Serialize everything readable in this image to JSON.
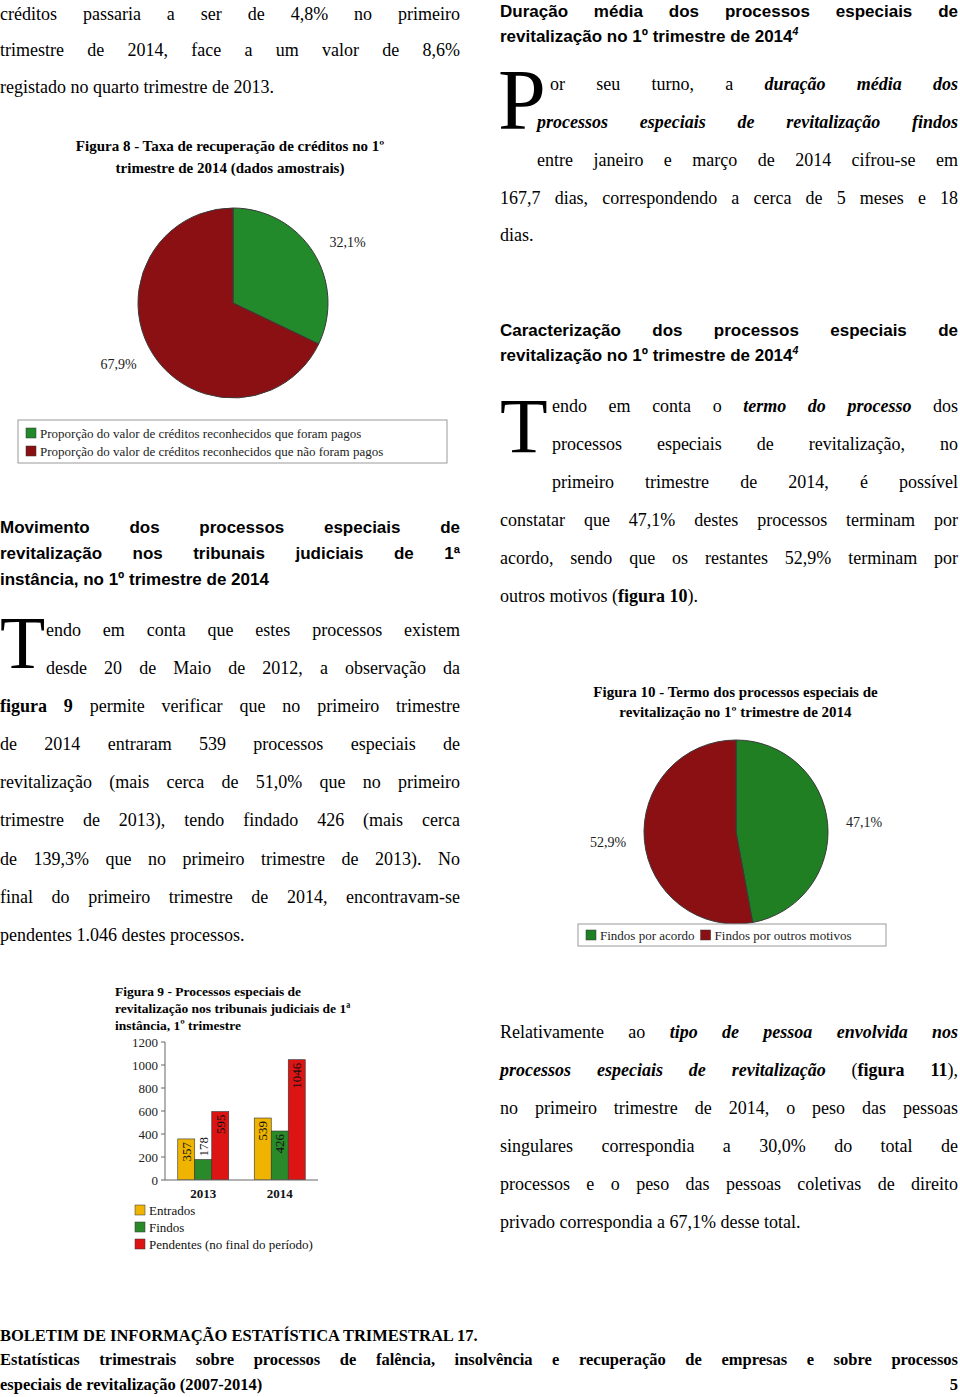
{
  "document": {
    "blocks": [
      {
        "kind": "paragraph",
        "lines": [
          [
            "créditos passaria a ser de 4,8% no primeiro"
          ],
          [
            "trimestre de 2014, face a um valor de 8,6%"
          ],
          [
            "registado no quarto trimestre de 2013."
          ]
        ]
      },
      {
        "kind": "heading",
        "lines": [
          [
            "Movimento dos processos especiais de"
          ],
          [
            "revitalização nos tribunais judiciais de 1ª"
          ],
          [
            "instância, no 1º trimestre de 2014"
          ]
        ]
      },
      {
        "kind": "paragraph",
        "drop_cap": "T",
        "lines": [
          [
            "endo em conta que estes processos existem"
          ],
          [
            "desde 20 de Maio de 2012, a observação da"
          ],
          [
            {
              "text": "figura 9",
              "style": "bold"
            },
            " permite verificar que no primeiro trimestre"
          ],
          [
            "de 2014 entraram 539 processos especiais de"
          ],
          [
            "revitalização (mais cerca de 51,0% que no primeiro"
          ],
          [
            "trimestre de 2013), tendo findado 426 (mais cerca"
          ],
          [
            "de 139,3% que no primeiro trimestre de 2013). No"
          ],
          [
            "final do primeiro trimestre de 2014, encontravam-se"
          ],
          [
            "pendentes 1.046 destes processos."
          ]
        ]
      },
      {
        "kind": "heading",
        "lines": [
          [
            "Duração média dos processos especiais de"
          ],
          [
            "revitalização no 1º trimestre de 2014",
            {
              "text": "4",
              "style": "superscript"
            }
          ]
        ]
      },
      {
        "kind": "paragraph",
        "drop_cap": "P",
        "lines": [
          [
            "or seu turno, a ",
            {
              "text": "duração média dos",
              "style": "bold-italic"
            }
          ],
          [
            {
              "text": "processos especiais de revitalização findos",
              "style": "bold-italic"
            }
          ],
          [
            "entre janeiro e março de 2014 cifrou-se em"
          ],
          [
            "167,7 dias, correspondendo a cerca de 5 meses e 18"
          ],
          [
            "dias."
          ]
        ]
      },
      {
        "kind": "heading",
        "lines": [
          [
            "Caracterização dos processos especiais de"
          ],
          [
            "revitalização no 1º trimestre de 2014",
            {
              "text": "4",
              "style": "superscript"
            }
          ]
        ]
      },
      {
        "kind": "paragraph",
        "drop_cap": "T",
        "lines": [
          [
            "endo em conta o ",
            {
              "text": "termo do processo",
              "style": "bold-italic"
            },
            " dos"
          ],
          [
            "processos especiais de revitalização, no"
          ],
          [
            "primeiro trimestre de 2014, é possível"
          ],
          [
            "constatar que 47,1% destes processos terminam por"
          ],
          [
            "acordo, sendo que os restantes 52,9% terminam por"
          ],
          [
            "outros motivos (",
            {
              "text": "figura 10",
              "style": "bold"
            },
            ")."
          ]
        ]
      },
      {
        "kind": "paragraph",
        "lines": [
          [
            "Relativamente ao ",
            {
              "text": "tipo de pessoa envolvida nos",
              "style": "bold-italic"
            }
          ],
          [
            {
              "text": "processos especiais de revitalização",
              "style": "bold-italic"
            },
            " (",
            {
              "text": "figura 11",
              "style": "bold"
            },
            "),"
          ],
          [
            "no primeiro trimestre de 2014, o peso das pessoas"
          ],
          [
            "singulares correspondia a 30,0% do total de"
          ],
          [
            "processos e o peso das pessoas coletivas de direito"
          ],
          [
            "privado correspondia a 67,1% desse total."
          ]
        ]
      },
      {
        "kind": "footer",
        "page_number": "5",
        "lines": [
          [
            "BOLETIM DE INFORMAÇÃO ESTATÍSTICA TRIMESTRAL 17."
          ],
          [
            "Estatísticas trimestrais sobre processos de falência, insolvência e recuperação de empresas e sobre processos"
          ],
          [
            "especiais de revitalização (2007-2014)"
          ]
        ]
      }
    ]
  },
  "chart_data": [
    {
      "type": "pie",
      "title": "Figura 8 - Taxa de recuperação de créditos no 1º trimestre de 2014 (dados amostrais)",
      "categories": [
        "Proporção do valor de créditos reconhecidos que foram pagos",
        "Proporção do valor de créditos reconhecidos que não foram pagos"
      ],
      "values": [
        32.1,
        67.9
      ],
      "value_labels": [
        "32,1%",
        "67,9%"
      ],
      "colors": [
        "#228a2a",
        "#8a1014"
      ],
      "data_labels": true,
      "legend": "bottom"
    },
    {
      "type": "bar",
      "title": "Figura 9 - Processos especiais de revitalização nos tribunais judiciais de 1ª instância, 1º trimestre",
      "categories": [
        "2013",
        "2014"
      ],
      "series": [
        {
          "name": "Entrados",
          "color": "#eeb400",
          "values": [
            357,
            539
          ]
        },
        {
          "name": "Findos",
          "color": "#2a8a2a",
          "values": [
            178,
            426
          ]
        },
        {
          "name": "Pendentes (no final do período)",
          "color": "#dc1414",
          "values": [
            595,
            1046
          ]
        }
      ],
      "ylim": [
        0,
        1200
      ],
      "yticks": [
        0,
        200,
        400,
        600,
        800,
        1000,
        1200
      ],
      "grid": false,
      "data_labels": true,
      "legend": "bottom"
    },
    {
      "type": "pie",
      "title": "Figura 10 - Termo dos processos especiais de revitalização no 1º trimestre de 2014",
      "categories": [
        "Findos por acordo",
        "Findos por outros motivos"
      ],
      "values": [
        47.1,
        52.9
      ],
      "value_labels": [
        "47,1%",
        "52,9%"
      ],
      "colors": [
        "#1f7f22",
        "#8a1014"
      ],
      "data_labels": true,
      "legend": "bottom"
    }
  ]
}
